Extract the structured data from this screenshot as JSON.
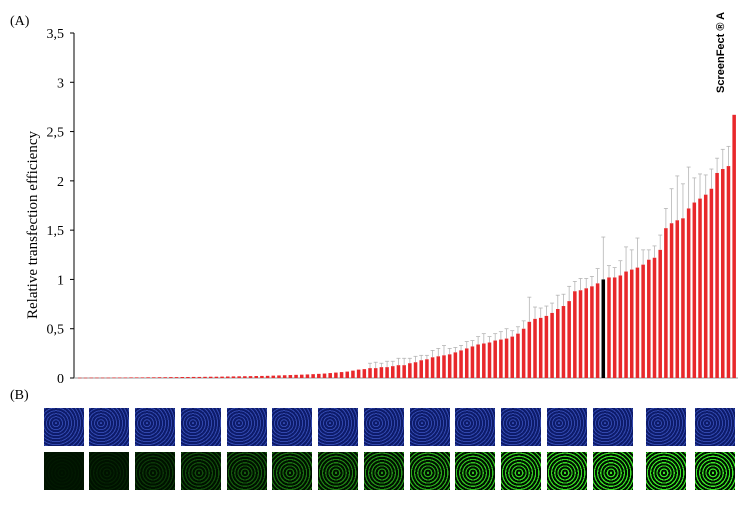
{
  "panels": {
    "a_label": "(A)",
    "b_label": "(B)"
  },
  "chart_data": {
    "type": "bar",
    "ylabel": "Relative transfection efficiency",
    "ylim": [
      0,
      3.5
    ],
    "yticks": [
      "0",
      "0,5",
      "1",
      "1,5",
      "2",
      "2,5",
      "3",
      "3,5"
    ],
    "bar_color": "#e8282b",
    "highlight_color": "#000000",
    "annotation": "ScreenFect ® A",
    "values": [
      0.003,
      0.003,
      0.004,
      0.004,
      0.004,
      0.004,
      0.005,
      0.005,
      0.005,
      0.006,
      0.006,
      0.006,
      0.007,
      0.007,
      0.008,
      0.008,
      0.009,
      0.009,
      0.01,
      0.01,
      0.011,
      0.011,
      0.012,
      0.013,
      0.013,
      0.014,
      0.015,
      0.016,
      0.017,
      0.018,
      0.019,
      0.02,
      0.021,
      0.022,
      0.024,
      0.026,
      0.028,
      0.03,
      0.032,
      0.034,
      0.036,
      0.039,
      0.042,
      0.045,
      0.05,
      0.055,
      0.06,
      0.065,
      0.075,
      0.085,
      0.09,
      0.1,
      0.1,
      0.11,
      0.11,
      0.12,
      0.13,
      0.13,
      0.15,
      0.16,
      0.18,
      0.19,
      0.21,
      0.22,
      0.23,
      0.24,
      0.26,
      0.28,
      0.3,
      0.32,
      0.34,
      0.35,
      0.36,
      0.38,
      0.39,
      0.4,
      0.42,
      0.45,
      0.5,
      0.57,
      0.6,
      0.61,
      0.63,
      0.66,
      0.7,
      0.73,
      0.78,
      0.88,
      0.89,
      0.91,
      0.93,
      0.96,
      1.0,
      1.02,
      1.02,
      1.04,
      1.08,
      1.1,
      1.12,
      1.15,
      1.2,
      1.22,
      1.3,
      1.52,
      1.57,
      1.6,
      1.62,
      1.72,
      1.78,
      1.82,
      1.86,
      1.92,
      2.08,
      2.12,
      2.15,
      2.67
    ],
    "highlight_index": 92,
    "errors": [
      0,
      0,
      0,
      0,
      0,
      0,
      0,
      0,
      0,
      0,
      0,
      0,
      0,
      0,
      0,
      0,
      0,
      0,
      0,
      0,
      0,
      0,
      0,
      0,
      0,
      0,
      0,
      0,
      0,
      0,
      0,
      0,
      0,
      0,
      0,
      0,
      0,
      0,
      0,
      0,
      0,
      0,
      0,
      0,
      0,
      0,
      0,
      0,
      0,
      0,
      0,
      0.05,
      0.06,
      0.04,
      0.06,
      0.05,
      0.07,
      0.07,
      0.05,
      0.06,
      0.05,
      0.04,
      0.07,
      0.08,
      0.1,
      0.06,
      0.05,
      0.05,
      0.07,
      0.06,
      0.08,
      0.1,
      0.06,
      0.07,
      0.08,
      0.1,
      0.06,
      0.07,
      0.08,
      0.25,
      0.12,
      0.1,
      0.1,
      0.1,
      0.14,
      0.12,
      0.15,
      0.1,
      0.12,
      0.1,
      0.1,
      0.15,
      0.43,
      0.12,
      0.1,
      0.15,
      0.25,
      0.2,
      0.3,
      0.15,
      0.1,
      0.12,
      0.15,
      0.2,
      0.35,
      0.45,
      0.35,
      0.42,
      0.25,
      0.25,
      0.2,
      0.2,
      0.15,
      0.2,
      0.2,
      0.0
    ]
  },
  "images": {
    "tiles": [
      {
        "green_level": 0.03
      },
      {
        "green_level": 0.08
      },
      {
        "green_level": 0.18
      },
      {
        "green_level": 0.28
      },
      {
        "green_level": 0.35
      },
      {
        "green_level": 0.45
      },
      {
        "green_level": 0.52
      },
      {
        "green_level": 0.6
      },
      {
        "green_level": 0.72
      },
      {
        "green_level": 0.82
      },
      {
        "green_level": 0.9
      },
      {
        "green_level": 0.95
      },
      {
        "green_level": 0.97
      },
      {
        "green_level": 0.99
      },
      {
        "green_level": 1.0
      }
    ]
  }
}
